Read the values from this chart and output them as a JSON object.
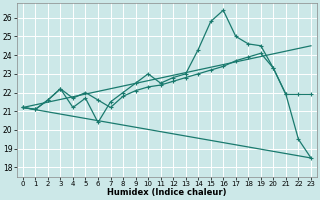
{
  "title": "",
  "xlabel": "Humidex (Indice chaleur)",
  "bg_color": "#cce8e8",
  "grid_color": "#ffffff",
  "line_color": "#1a7a6e",
  "xlim": [
    -0.5,
    23.5
  ],
  "ylim": [
    17.5,
    26.8
  ],
  "xticks": [
    0,
    1,
    2,
    3,
    4,
    5,
    6,
    7,
    8,
    9,
    10,
    11,
    12,
    13,
    14,
    15,
    16,
    17,
    18,
    19,
    20,
    21,
    22,
    23
  ],
  "yticks": [
    18,
    19,
    20,
    21,
    22,
    23,
    24,
    25,
    26
  ],
  "line1_x": [
    0,
    1,
    2,
    3,
    4,
    5,
    6,
    7,
    8,
    9,
    10,
    11,
    12,
    13,
    14,
    15,
    16,
    17,
    18,
    19,
    20,
    21,
    22,
    23
  ],
  "line1_y": [
    21.2,
    21.1,
    21.6,
    22.2,
    21.2,
    21.7,
    20.4,
    21.5,
    22.0,
    22.5,
    23.0,
    22.5,
    22.8,
    23.0,
    24.3,
    25.8,
    26.4,
    25.0,
    24.6,
    24.5,
    23.3,
    21.9,
    19.5,
    18.5
  ],
  "line2_x": [
    0,
    1,
    2,
    3,
    4,
    5,
    6,
    7,
    8,
    9,
    10,
    11,
    12,
    13,
    14,
    15,
    16,
    17,
    18,
    19,
    20,
    21,
    22,
    23
  ],
  "line2_y": [
    21.2,
    21.1,
    21.6,
    22.2,
    21.7,
    22.0,
    21.6,
    21.2,
    21.8,
    22.1,
    22.3,
    22.4,
    22.6,
    22.8,
    23.0,
    23.2,
    23.4,
    23.7,
    23.9,
    24.1,
    23.3,
    21.9,
    21.9,
    21.9
  ],
  "line3_x": [
    0,
    23
  ],
  "line3_y": [
    21.2,
    18.5
  ],
  "line4_x": [
    0,
    23
  ],
  "line4_y": [
    21.2,
    24.5
  ]
}
